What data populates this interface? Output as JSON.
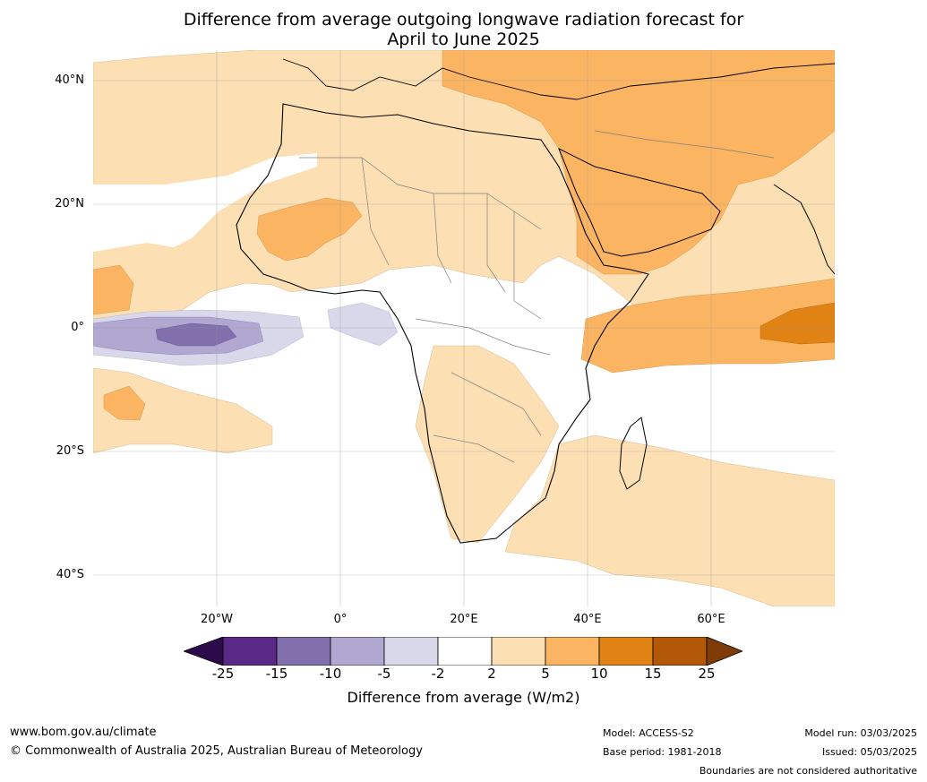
{
  "title": {
    "line1": "Difference from average outgoing longwave radiation forecast for",
    "line2": "April to June 2025"
  },
  "map": {
    "lat_labels": [
      "40°N",
      "20°N",
      "0°",
      "20°S",
      "40°S"
    ],
    "lon_labels": [
      "20°W",
      "0°",
      "20°E",
      "40°E",
      "60°E"
    ]
  },
  "colorbar": {
    "title": "Difference from average (W/m2)",
    "ticks": [
      "-25",
      "-15",
      "-10",
      "-5",
      "-2",
      "2",
      "5",
      "10",
      "15",
      "25"
    ],
    "colors": {
      "lt_minus25": "#2d0a4a",
      "minus25_15": "#5a2886",
      "minus15_10": "#8170ab",
      "minus10_5": "#b0a8d0",
      "minus5_2": "#d8d8ea",
      "minus2_2": "#ffffff",
      "p2_5": "#fddfb4",
      "p5_10": "#fbb562",
      "p10_15": "#e08214",
      "p15_25": "#b35806",
      "gt25": "#7f3b08"
    }
  },
  "footer": {
    "website": "www.bom.gov.au/climate",
    "copyright": "© Commonwealth of Australia 2025, Australian Bureau of Meteorology",
    "model": "Model: ACCESS-S2",
    "base_period": "Base period: 1981-2018",
    "model_run": "Model run: 03/03/2025",
    "issued": "Issued: 05/03/2025",
    "disclaimer": "Boundaries are not considered authoritative"
  }
}
